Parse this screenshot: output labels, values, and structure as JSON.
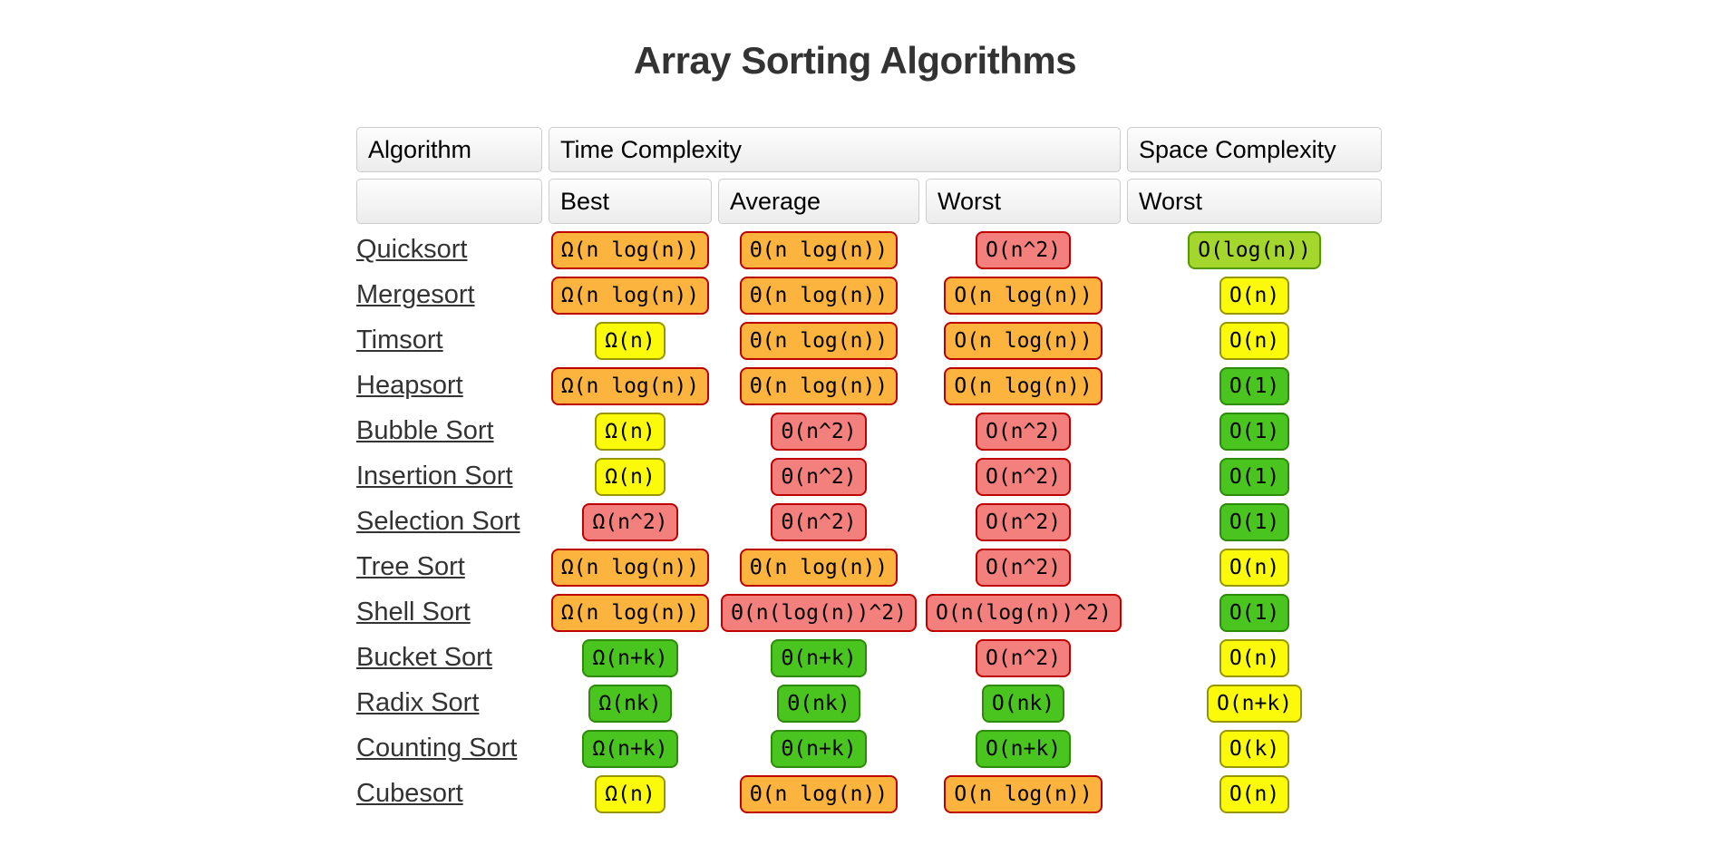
{
  "title": "Array Sorting Algorithms",
  "colors": {
    "orange": {
      "bg": "#FCB43F",
      "border": "#BE0000"
    },
    "red": {
      "bg": "#F4807D",
      "border": "#BE0000"
    },
    "yellow": {
      "bg": "#FAFA0A",
      "border": "#969600"
    },
    "yellow_green": {
      "bg": "#A5D62E",
      "border": "#559900"
    },
    "green": {
      "bg": "#4AC41F",
      "border": "#2E8B09"
    },
    "title_text": "#333333",
    "link_text": "#333333",
    "header_border": "#cccccc"
  },
  "table": {
    "header": {
      "algorithm": "Algorithm",
      "time_complexity": "Time Complexity",
      "space_complexity": "Space Complexity",
      "best": "Best",
      "average": "Average",
      "worst": "Worst",
      "space_worst": "Worst"
    },
    "rows": [
      {
        "name": "Quicksort",
        "best": {
          "text": "Ω(n log(n))",
          "level": "orange"
        },
        "average": {
          "text": "Θ(n log(n))",
          "level": "orange"
        },
        "worst": {
          "text": "O(n^2)",
          "level": "red"
        },
        "space": {
          "text": "O(log(n))",
          "level": "yellow_green"
        }
      },
      {
        "name": "Mergesort",
        "best": {
          "text": "Ω(n log(n))",
          "level": "orange"
        },
        "average": {
          "text": "Θ(n log(n))",
          "level": "orange"
        },
        "worst": {
          "text": "O(n log(n))",
          "level": "orange"
        },
        "space": {
          "text": "O(n)",
          "level": "yellow"
        }
      },
      {
        "name": "Timsort",
        "best": {
          "text": "Ω(n)",
          "level": "yellow"
        },
        "average": {
          "text": "Θ(n log(n))",
          "level": "orange"
        },
        "worst": {
          "text": "O(n log(n))",
          "level": "orange"
        },
        "space": {
          "text": "O(n)",
          "level": "yellow"
        }
      },
      {
        "name": "Heapsort",
        "best": {
          "text": "Ω(n log(n))",
          "level": "orange"
        },
        "average": {
          "text": "Θ(n log(n))",
          "level": "orange"
        },
        "worst": {
          "text": "O(n log(n))",
          "level": "orange"
        },
        "space": {
          "text": "O(1)",
          "level": "green"
        }
      },
      {
        "name": "Bubble Sort",
        "best": {
          "text": "Ω(n)",
          "level": "yellow"
        },
        "average": {
          "text": "Θ(n^2)",
          "level": "red"
        },
        "worst": {
          "text": "O(n^2)",
          "level": "red"
        },
        "space": {
          "text": "O(1)",
          "level": "green"
        }
      },
      {
        "name": "Insertion Sort",
        "best": {
          "text": "Ω(n)",
          "level": "yellow"
        },
        "average": {
          "text": "Θ(n^2)",
          "level": "red"
        },
        "worst": {
          "text": "O(n^2)",
          "level": "red"
        },
        "space": {
          "text": "O(1)",
          "level": "green"
        }
      },
      {
        "name": "Selection Sort",
        "best": {
          "text": "Ω(n^2)",
          "level": "red"
        },
        "average": {
          "text": "Θ(n^2)",
          "level": "red"
        },
        "worst": {
          "text": "O(n^2)",
          "level": "red"
        },
        "space": {
          "text": "O(1)",
          "level": "green"
        }
      },
      {
        "name": "Tree Sort",
        "best": {
          "text": "Ω(n log(n))",
          "level": "orange"
        },
        "average": {
          "text": "Θ(n log(n))",
          "level": "orange"
        },
        "worst": {
          "text": "O(n^2)",
          "level": "red"
        },
        "space": {
          "text": "O(n)",
          "level": "yellow"
        }
      },
      {
        "name": "Shell Sort",
        "best": {
          "text": "Ω(n log(n))",
          "level": "orange"
        },
        "average": {
          "text": "Θ(n(log(n))^2)",
          "level": "red"
        },
        "worst": {
          "text": "O(n(log(n))^2)",
          "level": "red"
        },
        "space": {
          "text": "O(1)",
          "level": "green"
        }
      },
      {
        "name": "Bucket Sort",
        "best": {
          "text": "Ω(n+k)",
          "level": "green"
        },
        "average": {
          "text": "Θ(n+k)",
          "level": "green"
        },
        "worst": {
          "text": "O(n^2)",
          "level": "red"
        },
        "space": {
          "text": "O(n)",
          "level": "yellow"
        }
      },
      {
        "name": "Radix Sort",
        "best": {
          "text": "Ω(nk)",
          "level": "green"
        },
        "average": {
          "text": "Θ(nk)",
          "level": "green"
        },
        "worst": {
          "text": "O(nk)",
          "level": "green"
        },
        "space": {
          "text": "O(n+k)",
          "level": "yellow"
        }
      },
      {
        "name": "Counting Sort",
        "best": {
          "text": "Ω(n+k)",
          "level": "green"
        },
        "average": {
          "text": "Θ(n+k)",
          "level": "green"
        },
        "worst": {
          "text": "O(n+k)",
          "level": "green"
        },
        "space": {
          "text": "O(k)",
          "level": "yellow"
        }
      },
      {
        "name": "Cubesort",
        "best": {
          "text": "Ω(n)",
          "level": "yellow"
        },
        "average": {
          "text": "Θ(n log(n))",
          "level": "orange"
        },
        "worst": {
          "text": "O(n log(n))",
          "level": "orange"
        },
        "space": {
          "text": "O(n)",
          "level": "yellow"
        }
      }
    ]
  }
}
